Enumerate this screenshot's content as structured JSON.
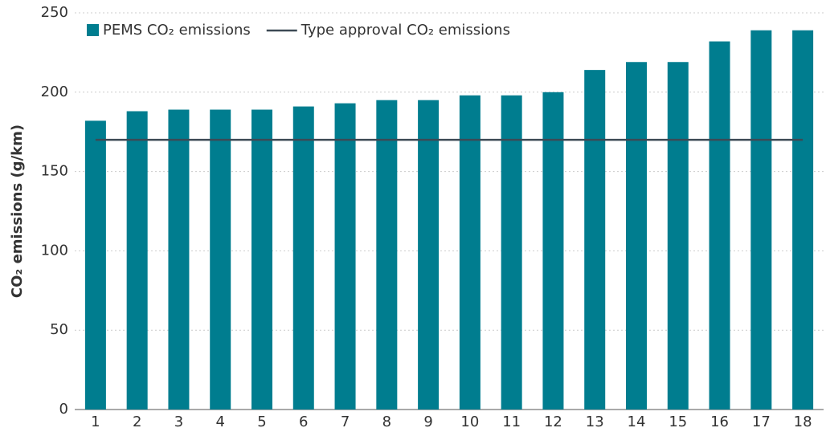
{
  "chart_data": {
    "type": "bar",
    "categories": [
      "1",
      "2",
      "3",
      "4",
      "5",
      "6",
      "7",
      "8",
      "9",
      "10",
      "11",
      "12",
      "13",
      "14",
      "15",
      "16",
      "17",
      "18"
    ],
    "series": [
      {
        "name": "PEMS CO₂ emissions",
        "type": "bar",
        "color": "#007d8f",
        "values": [
          182,
          188,
          189,
          189,
          189,
          191,
          193,
          195,
          195,
          198,
          198,
          200,
          214,
          219,
          219,
          232,
          239,
          239
        ]
      },
      {
        "name": "Type approval CO₂ emissions",
        "type": "line",
        "color": "#3d4a55",
        "values": [
          170,
          170,
          170,
          170,
          170,
          170,
          170,
          170,
          170,
          170,
          170,
          170,
          170,
          170,
          170,
          170,
          170,
          170
        ]
      }
    ],
    "ylabel": "CO₂ emissions (g/km)",
    "ylim": [
      0,
      250
    ],
    "yticks": [
      0,
      50,
      100,
      150,
      200,
      250
    ],
    "grid": true,
    "legend": "top-left"
  }
}
